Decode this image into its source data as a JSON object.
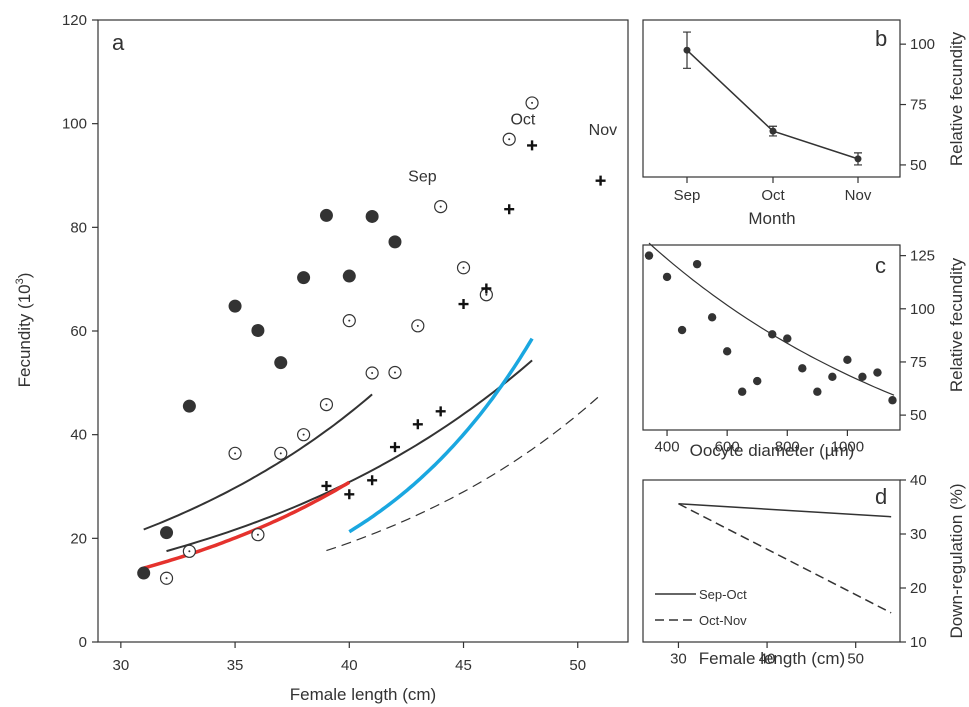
{
  "chart_data": [
    {
      "panel": "a",
      "type": "scatter",
      "panel_label": "a",
      "xlabel": "Female length (cm)",
      "ylabel_main": "Fecundity (10",
      "ylabel_sup": "3",
      "ylabel_close": ")",
      "xlim": [
        29,
        52.2
      ],
      "ylim": [
        0,
        120
      ],
      "xticks": [
        30,
        35,
        40,
        45,
        50
      ],
      "yticks": [
        0,
        20,
        40,
        60,
        80,
        100,
        120
      ],
      "grid": false,
      "series": [
        {
          "name": "Sep",
          "marker": "filled-circle",
          "color": "#333333",
          "x": [
            31,
            32,
            33,
            35,
            36,
            37,
            38,
            39,
            40,
            41,
            42
          ],
          "y": [
            13.3,
            21.1,
            45.5,
            64.8,
            60.1,
            53.9,
            70.3,
            82.3,
            70.6,
            82.1,
            77.2
          ]
        },
        {
          "name": "Oct",
          "marker": "dotted-circle",
          "color": "#333333",
          "x": [
            32,
            33,
            35,
            36,
            37,
            38,
            39,
            40,
            41,
            42,
            43,
            44,
            45,
            46,
            47,
            48
          ],
          "y": [
            12.3,
            17.5,
            36.4,
            20.7,
            36.4,
            40.0,
            45.8,
            62.0,
            51.9,
            52.0,
            61.0,
            84.0,
            72.2,
            67.0,
            97.0,
            104.0
          ]
        },
        {
          "name": "Nov",
          "marker": "plus",
          "color": "#111111",
          "x": [
            39,
            40,
            41,
            42,
            43,
            44,
            45,
            46,
            47,
            48,
            51
          ],
          "y": [
            30.1,
            28.5,
            31.2,
            37.6,
            42.0,
            44.5,
            65.2,
            68.2,
            83.5,
            95.8,
            89.0
          ]
        }
      ],
      "curves": [
        {
          "name": "Sep",
          "style": "solid",
          "color": "#333333",
          "width": 2,
          "a": 1.88,
          "b": 0.0789,
          "x0": 31,
          "x1": 41
        },
        {
          "name": "Oct",
          "style": "solid",
          "color": "#333333",
          "width": 2,
          "a": 1.825,
          "b": 0.0707,
          "x0": 32,
          "x1": 48
        },
        {
          "name": "Oct",
          "style": "solid",
          "color": "#e5322d",
          "width": 3.5,
          "a": 1.0,
          "b": 0.0857,
          "x0": 31,
          "x1": 40
        },
        {
          "name": "Oct",
          "style": "solid",
          "color": "#1aa7e0",
          "width": 3.5,
          "a": 0.135,
          "b": 0.1265,
          "x0": 40,
          "x1": 48
        },
        {
          "name": "Nov",
          "style": "dashed",
          "color": "#333333",
          "width": 1.2,
          "a": 0.695,
          "b": 0.0829,
          "x0": 39,
          "x1": 51
        }
      ],
      "annotations": [
        {
          "text": "Sep",
          "x": 43.2,
          "y": 90
        },
        {
          "text": "Oct",
          "x": 47.6,
          "y": 101
        },
        {
          "text": "Nov",
          "x": 51.1,
          "y": 99
        }
      ]
    },
    {
      "panel": "b",
      "type": "line",
      "panel_label": "b",
      "xlabel": "Month",
      "ylabel": "Relative fecundity",
      "categories": [
        "Sep",
        "Oct",
        "Nov"
      ],
      "ylim": [
        45,
        110
      ],
      "yticks": [
        50,
        75,
        100
      ],
      "values": [
        97.5,
        64.0,
        52.5
      ],
      "error": [
        7.5,
        2.0,
        2.5
      ]
    },
    {
      "panel": "c",
      "type": "scatter",
      "panel_label": "c",
      "xlabel": "Oocyte diameter (µm)",
      "ylabel": "Relative fecundity",
      "xlim": [
        320,
        1175
      ],
      "ylim": [
        43,
        130
      ],
      "xticks": [
        400,
        600,
        800,
        1000
      ],
      "yticks": [
        50,
        75,
        100,
        125
      ],
      "x": [
        340,
        400,
        450,
        500,
        550,
        600,
        650,
        700,
        750,
        800,
        850,
        900,
        950,
        1000,
        1050,
        1100,
        1150
      ],
      "y": [
        125,
        115,
        90,
        121,
        96,
        80,
        61,
        66,
        88,
        86,
        72,
        61,
        68,
        76,
        68,
        70,
        57
      ],
      "fit": {
        "a": 182,
        "b": 0.00097,
        "x0": 340,
        "x1": 1155
      }
    },
    {
      "panel": "d",
      "type": "line",
      "panel_label": "d",
      "xlabel": "Female length (cm)",
      "ylabel": "Down-regulation (%)",
      "xlim": [
        26,
        55
      ],
      "ylim": [
        10,
        40
      ],
      "xticks": [
        30,
        40,
        50
      ],
      "yticks": [
        10,
        20,
        30,
        40
      ],
      "series": [
        {
          "name": "Sep-Oct",
          "style": "solid",
          "x": [
            30,
            54
          ],
          "y": [
            35.6,
            33.2
          ]
        },
        {
          "name": "Oct-Nov",
          "style": "dashed",
          "x": [
            30,
            54
          ],
          "y": [
            35.6,
            15.4
          ]
        }
      ]
    }
  ]
}
